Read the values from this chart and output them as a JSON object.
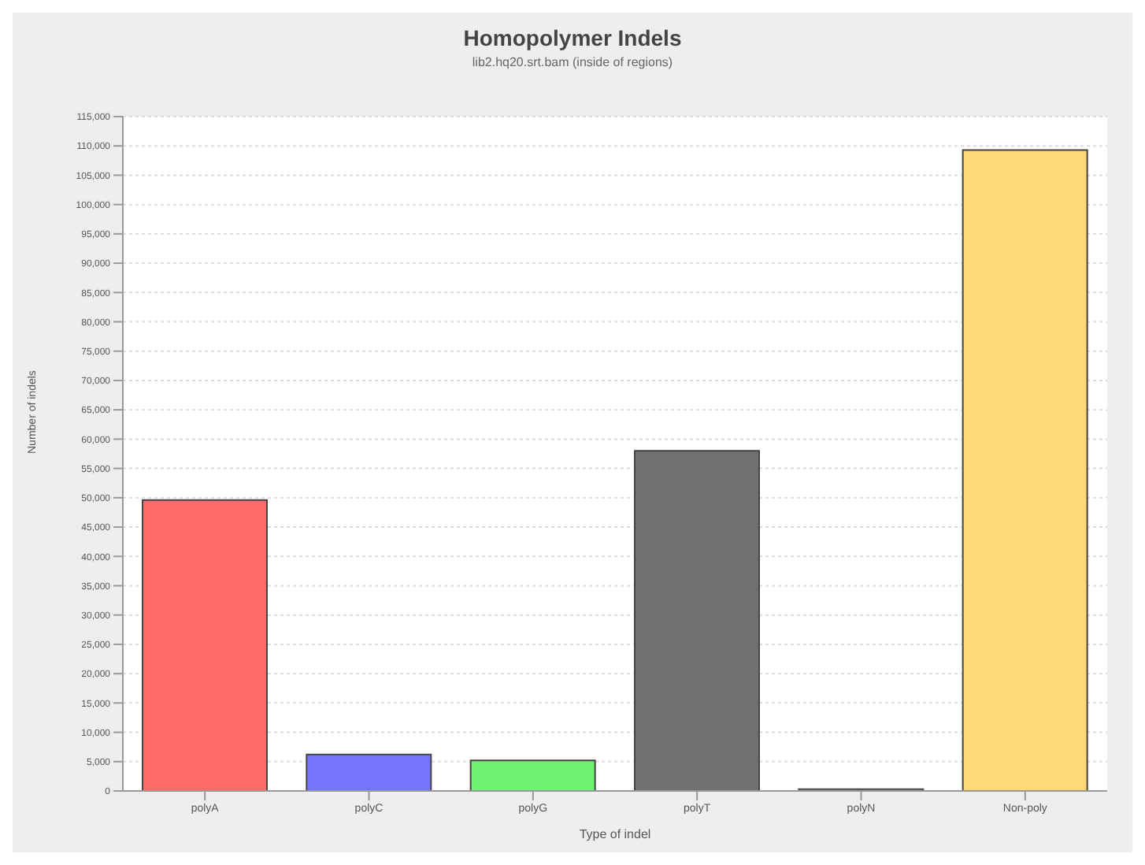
{
  "chart_data": {
    "type": "bar",
    "title": "Homopolymer Indels",
    "subtitle": "lib2.hq20.srt.bam (inside of regions)",
    "xlabel": "Type of indel",
    "ylabel": "Number of indels",
    "categories": [
      "polyA",
      "polyC",
      "polyG",
      "polyT",
      "polyN",
      "Non-poly"
    ],
    "values": [
      49600,
      6200,
      5200,
      58000,
      300,
      109300
    ],
    "colors": [
      "#ff6b6b",
      "#7474ff",
      "#72f272",
      "#707070",
      "#c0c0c0",
      "#ffd877"
    ],
    "ylim": [
      0,
      115000
    ],
    "yticks": [
      0,
      {
        "value": 5000,
        "label": "5,000"
      },
      {
        "value": 10000,
        "label": "10,000"
      },
      {
        "value": 15000,
        "label": "15,000"
      },
      {
        "value": 20000,
        "label": "20,000"
      },
      {
        "value": 25000,
        "label": "25,000"
      },
      {
        "value": 30000,
        "label": "30,000"
      },
      {
        "value": 35000,
        "label": "35,000"
      },
      {
        "value": 40000,
        "label": "40,000"
      },
      {
        "value": 45000,
        "label": "45,000"
      },
      {
        "value": 50000,
        "label": "50,000"
      },
      {
        "value": 55000,
        "label": "55,000"
      },
      {
        "value": 60000,
        "label": "60,000"
      },
      {
        "value": 65000,
        "label": "65,000"
      },
      {
        "value": 70000,
        "label": "70,000"
      },
      {
        "value": 75000,
        "label": "75,000"
      },
      {
        "value": 80000,
        "label": "80,000"
      },
      {
        "value": 85000,
        "label": "85,000"
      },
      {
        "value": 90000,
        "label": "90,000"
      },
      {
        "value": 95000,
        "label": "95,000"
      },
      {
        "value": 100000,
        "label": "100,000"
      },
      {
        "value": 105000,
        "label": "105,000"
      },
      {
        "value": 110000,
        "label": "110,000"
      },
      {
        "value": 115000,
        "label": "115,000"
      }
    ],
    "grid": "y",
    "legend": false
  }
}
